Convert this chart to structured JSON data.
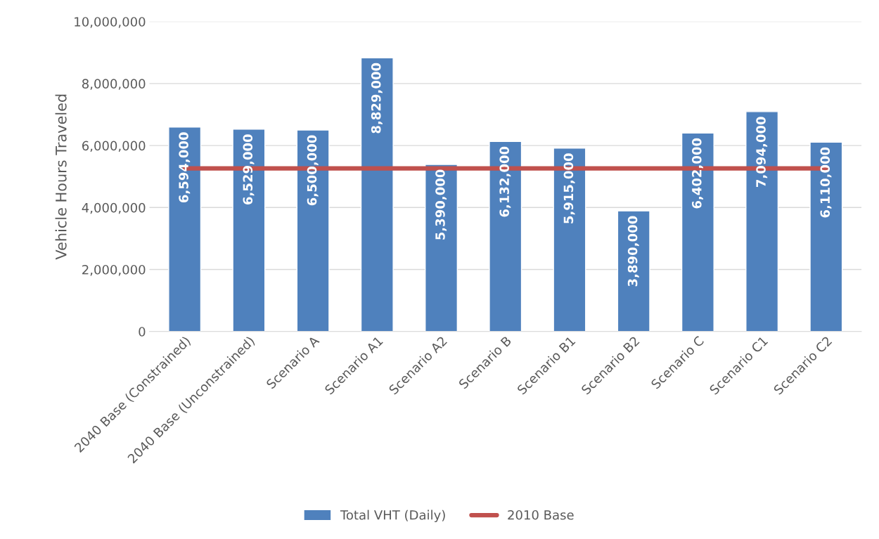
{
  "chart_data": {
    "type": "bar",
    "ylabel": "Vehicle Hours Traveled",
    "categories": [
      "2040 Base (Constrained)",
      "2040 Base (Unconstrained)",
      "Scenario A",
      "Scenario A1",
      "Scenario A2",
      "Scenario B",
      "Scenario B1",
      "Scenario B2",
      "Scenario C",
      "Scenario C1",
      "Scenario C2"
    ],
    "series": [
      {
        "name": "Total VHT (Daily)",
        "color": "#4f81bd",
        "values": [
          6594000,
          6529000,
          6500000,
          8829000,
          5390000,
          6132000,
          5915000,
          3890000,
          6402000,
          7094000,
          6110000
        ],
        "value_labels": [
          "6,594,000",
          "6,529,000",
          "6,500,000",
          "8,829,000",
          "5,390,000",
          "6,132,000",
          "5,915,000",
          "3,890,000",
          "6,402,000",
          "7,094,000",
          "6,110,000"
        ]
      },
      {
        "name": "2010 Base",
        "type": "line",
        "color": "#c0504d",
        "values": [
          5260000,
          5260000,
          5260000,
          5260000,
          5260000,
          5260000,
          5260000,
          5260000,
          5260000,
          5260000,
          5260000
        ]
      }
    ],
    "ylim": [
      0,
      10000000
    ],
    "yticks": [
      {
        "value": 0,
        "label": "0"
      },
      {
        "value": 2000000,
        "label": "2,000,000"
      },
      {
        "value": 4000000,
        "label": "4,000,000"
      },
      {
        "value": 6000000,
        "label": "6,000,000"
      },
      {
        "value": 8000000,
        "label": "8,000,000"
      },
      {
        "value": 10000000,
        "label": "10,000,000"
      }
    ],
    "grid": "y",
    "legend": "bottom",
    "marker": "none",
    "line_style": "solid"
  }
}
